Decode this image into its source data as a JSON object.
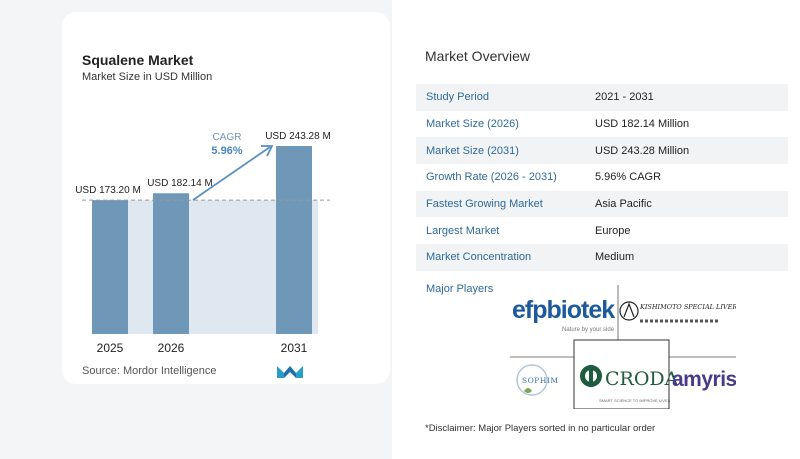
{
  "chart": {
    "title": "Squalene Market",
    "subtitle": "Market Size in USD Million",
    "source": "Source: Mordor Intelligence",
    "cagr_label": "CAGR",
    "cagr_value": "5.96%"
  },
  "chart_data": {
    "type": "bar",
    "categories": [
      "2025",
      "2026",
      "2031"
    ],
    "values": [
      173.2,
      182.14,
      243.28
    ],
    "value_labels": [
      "USD 173.20 M",
      "USD 182.14 M",
      "USD 243.28 M"
    ],
    "title": "Squalene Market",
    "subtitle": "Market Size in USD Million",
    "annotation": "CAGR 5.96%",
    "grid": false,
    "colors": {
      "bar": "#6f97b8",
      "band": "#dfe8f0",
      "arrow": "#5b8fbf",
      "dash": "#999999"
    }
  },
  "overview": {
    "title": "Market Overview",
    "rows": [
      {
        "label": "Study Period",
        "value": "2021 - 2031"
      },
      {
        "label": "Market Size (2026)",
        "value": "USD 182.14 Million"
      },
      {
        "label": "Market Size (2031)",
        "value": "USD 243.28 Million"
      },
      {
        "label": "Growth Rate (2026 - 2031)",
        "value": "5.96% CAGR"
      },
      {
        "label": "Fastest Growing Market",
        "value": "Asia Pacific"
      },
      {
        "label": "Largest Market",
        "value": "Europe"
      },
      {
        "label": "Market Concentration",
        "value": "Medium"
      }
    ],
    "major_players_label": "Major Players",
    "disclaimer": "*Disclaimer: Major Players sorted in no particular order"
  },
  "players": {
    "efp": {
      "name": "efpbiotek",
      "tagline": "Nature by your side"
    },
    "kishimoto": {
      "name": "KISHIMOTO SPECIAL LIVER OIL CO.,LTD."
    },
    "sophim": {
      "name": "SOPHIM"
    },
    "croda": {
      "name": "CRODA",
      "tagline": "SMART SCIENCE TO IMPROVE LIVES"
    },
    "amyris": {
      "name": "amyris"
    }
  }
}
